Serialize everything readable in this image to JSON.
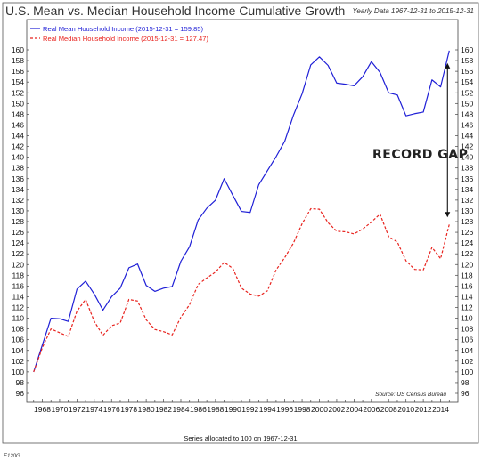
{
  "chart_data": {
    "type": "line",
    "title": "U.S. Mean vs. Median Household Income Cumulative Growth",
    "subtitle": "Yearly Data 1967-12-31 to 2015-12-31",
    "x": [
      1967,
      1968,
      1969,
      1970,
      1971,
      1972,
      1973,
      1974,
      1975,
      1976,
      1977,
      1978,
      1979,
      1980,
      1981,
      1982,
      1983,
      1984,
      1985,
      1986,
      1987,
      1988,
      1989,
      1990,
      1991,
      1992,
      1993,
      1994,
      1995,
      1996,
      1997,
      1998,
      1999,
      2000,
      2001,
      2002,
      2003,
      2004,
      2005,
      2006,
      2007,
      2008,
      2009,
      2010,
      2011,
      2012,
      2013,
      2014,
      2015
    ],
    "series": [
      {
        "name": "Real Mean Household Income (2015-12-31 = 159.85)",
        "color": "#1f1fd6",
        "dash": "solid",
        "values": [
          100,
          105,
          110,
          109.9,
          109.4,
          115.4,
          116.9,
          114.5,
          111.5,
          114,
          115.6,
          119.4,
          120.1,
          116.1,
          115,
          115.6,
          115.9,
          120.6,
          123.3,
          128.3,
          130.5,
          132,
          136,
          132.9,
          129.9,
          129.7,
          134.9,
          137.5,
          140.1,
          143,
          147.8,
          151.8,
          157.2,
          158.7,
          157.1,
          153.8,
          153.6,
          153.3,
          155,
          157.8,
          155.8,
          152,
          151.6,
          147.7,
          148.1,
          148.4,
          154.4,
          153.1,
          159.85
        ]
      },
      {
        "name": "Real Median Household Income (2015-12-31 = 127.47)",
        "color": "#e8231e",
        "dash": "dashed",
        "values": [
          100,
          104.5,
          108,
          107.3,
          106.6,
          111.3,
          113.5,
          109.4,
          106.8,
          108.6,
          109.1,
          113.5,
          113.2,
          109.7,
          107.9,
          107.5,
          106.9,
          110.2,
          112.5,
          116.3,
          117.5,
          118.6,
          120.4,
          119.3,
          115.6,
          114.5,
          114.1,
          115.1,
          119,
          121.3,
          124,
          127.6,
          130.4,
          130.3,
          127.8,
          126.2,
          126.1,
          125.7,
          126.6,
          127.9,
          129.4,
          125.2,
          124.2,
          120.7,
          119.1,
          119,
          123.2,
          121.1,
          127.47
        ]
      }
    ],
    "ylim": [
      96,
      160
    ],
    "y_ticks": [
      96,
      98,
      100,
      102,
      104,
      106,
      108,
      110,
      112,
      114,
      116,
      118,
      120,
      122,
      124,
      126,
      128,
      130,
      132,
      134,
      136,
      138,
      140,
      142,
      144,
      146,
      148,
      150,
      152,
      154,
      156,
      158,
      160
    ],
    "y_tick_labels_left": true,
    "y_tick_labels_right": true,
    "xlim": [
      1966.2,
      2016
    ],
    "x_ticks": [
      1968,
      1970,
      1972,
      1974,
      1976,
      1978,
      1980,
      1982,
      1984,
      1986,
      1988,
      1990,
      1992,
      1994,
      1996,
      1998,
      2000,
      2002,
      2004,
      2006,
      2008,
      2010,
      2012,
      2014
    ],
    "xlabel": "",
    "ylabel": "",
    "grid": false,
    "legend_position": "top-left",
    "annotation": {
      "text": "RECORD GAP",
      "arrow_x": 2015,
      "arrow_from": 159.85,
      "arrow_to": 127.47
    },
    "source": "Source:  US Census Bureau",
    "footer_note": "Series allocated to 100 on 1967-12-31",
    "code": "E120G"
  }
}
